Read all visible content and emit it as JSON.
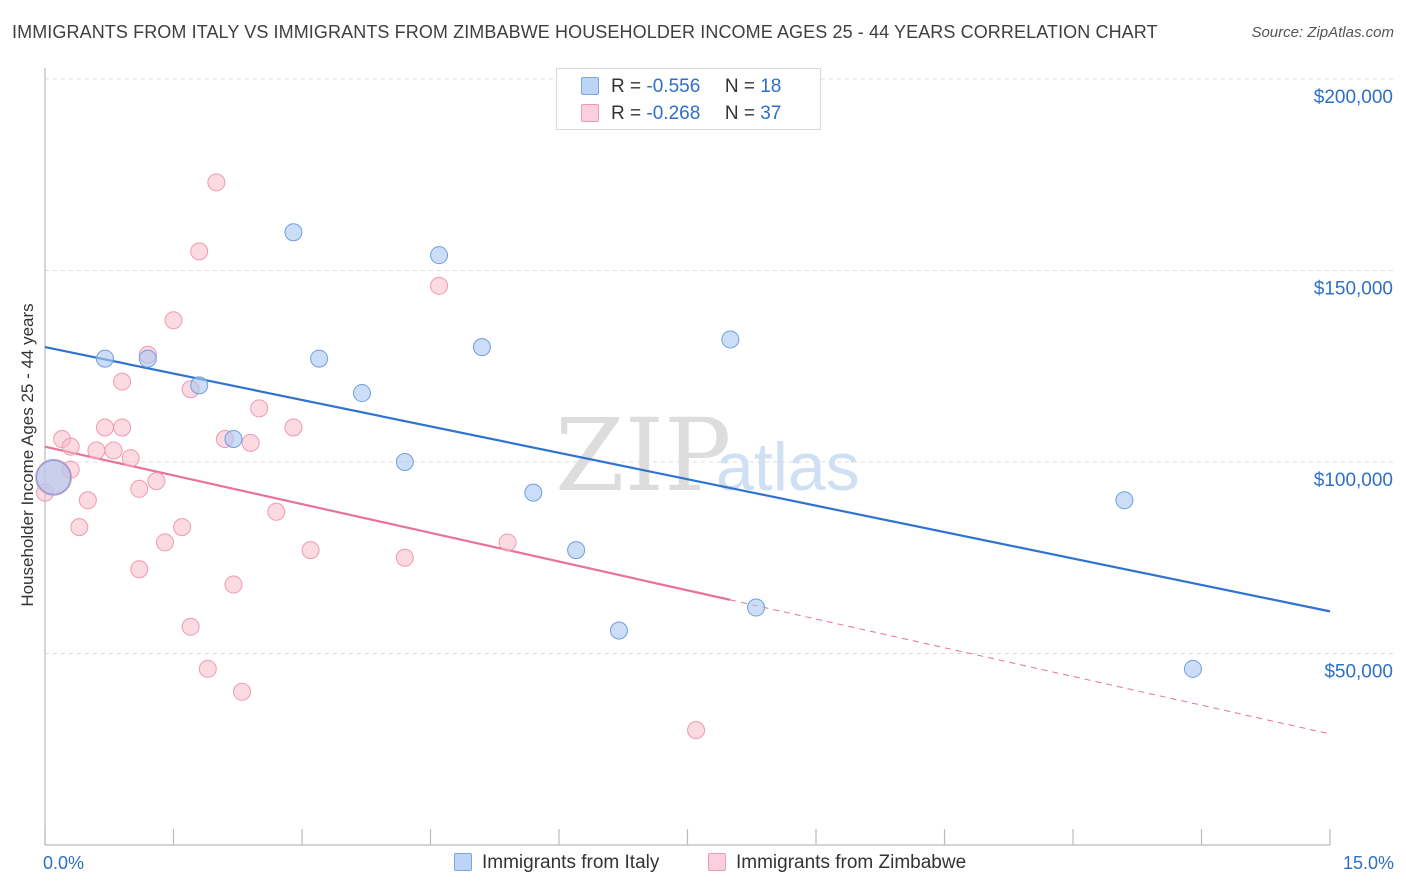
{
  "title": "IMMIGRANTS FROM ITALY VS IMMIGRANTS FROM ZIMBABWE HOUSEHOLDER INCOME AGES 25 - 44 YEARS CORRELATION CHART",
  "source": "Source: ZipAtlas.com",
  "watermark": {
    "zip": "ZIP",
    "atlas": "atlas"
  },
  "legend": {
    "italy": {
      "r_label": "R =",
      "r_value": "-0.556",
      "n_label": "N =",
      "n_value": "18"
    },
    "zimbabwe": {
      "r_label": "R =",
      "r_value": "-0.268",
      "n_label": "N =",
      "n_value": "37"
    }
  },
  "bottom_legend": {
    "italy": "Immigrants from Italy",
    "zimbabwe": "Immigrants from Zimbabwe"
  },
  "chart_data": {
    "type": "scatter",
    "title": "IMMIGRANTS FROM ITALY VS IMMIGRANTS FROM ZIMBABWE HOUSEHOLDER INCOME AGES 25 - 44 YEARS CORRELATION CHART",
    "xlabel": "",
    "ylabel": "Householder Income Ages 25 - 44 years",
    "xlim": [
      0,
      15
    ],
    "ylim": [
      0,
      200000
    ],
    "x_tick_labels": [
      "0.0%",
      "15.0%"
    ],
    "y_ticks": [
      50000,
      100000,
      150000,
      200000
    ],
    "y_tick_labels": [
      "$50,000",
      "$100,000",
      "$150,000",
      "$200,000"
    ],
    "grid": "horizontal dashed",
    "legend_position": "top-center",
    "colors": {
      "italy": "#aac8f2",
      "italy_line": "#2f73d0",
      "zimbabwe": "#f7bccb",
      "zimbabwe_line": "#e8729a",
      "tick_text": "#2f6fc7"
    },
    "series": [
      {
        "name": "Immigrants from Italy",
        "points": [
          [
            0.1,
            96000
          ],
          [
            0.7,
            127000
          ],
          [
            1.2,
            127000
          ],
          [
            1.8,
            120000
          ],
          [
            2.2,
            106000
          ],
          [
            2.9,
            160000
          ],
          [
            3.2,
            127000
          ],
          [
            3.7,
            118000
          ],
          [
            4.2,
            100000
          ],
          [
            4.6,
            154000
          ],
          [
            5.1,
            130000
          ],
          [
            5.7,
            92000
          ],
          [
            6.2,
            77000
          ],
          [
            6.7,
            56000
          ],
          [
            8.0,
            132000
          ],
          [
            8.3,
            62000
          ],
          [
            12.6,
            90000
          ],
          [
            13.4,
            46000
          ]
        ],
        "trend": {
          "x": [
            0,
            15
          ],
          "y": [
            130000,
            61000
          ]
        }
      },
      {
        "name": "Immigrants from Zimbabwe",
        "points": [
          [
            0.0,
            92000
          ],
          [
            0.2,
            106000
          ],
          [
            0.3,
            104000
          ],
          [
            0.3,
            98000
          ],
          [
            0.4,
            83000
          ],
          [
            0.5,
            90000
          ],
          [
            0.6,
            103000
          ],
          [
            0.7,
            109000
          ],
          [
            0.8,
            103000
          ],
          [
            0.9,
            121000
          ],
          [
            0.9,
            109000
          ],
          [
            1.0,
            101000
          ],
          [
            1.1,
            93000
          ],
          [
            1.1,
            72000
          ],
          [
            1.2,
            128000
          ],
          [
            1.3,
            95000
          ],
          [
            1.4,
            79000
          ],
          [
            1.5,
            137000
          ],
          [
            1.6,
            83000
          ],
          [
            1.7,
            119000
          ],
          [
            1.7,
            57000
          ],
          [
            1.8,
            155000
          ],
          [
            1.9,
            46000
          ],
          [
            2.0,
            173000
          ],
          [
            2.1,
            106000
          ],
          [
            2.2,
            68000
          ],
          [
            2.3,
            40000
          ],
          [
            2.4,
            105000
          ],
          [
            2.5,
            114000
          ],
          [
            2.7,
            87000
          ],
          [
            2.9,
            109000
          ],
          [
            3.1,
            77000
          ],
          [
            4.2,
            75000
          ],
          [
            4.6,
            146000
          ],
          [
            5.4,
            79000
          ],
          [
            7.6,
            30000
          ],
          [
            0.1,
            96000
          ]
        ],
        "trend": {
          "x": [
            0,
            8.0
          ],
          "y": [
            104000,
            64000
          ]
        },
        "trend_extrapolated": {
          "x": [
            8.0,
            15
          ],
          "y": [
            64000,
            29000
          ]
        }
      }
    ]
  }
}
